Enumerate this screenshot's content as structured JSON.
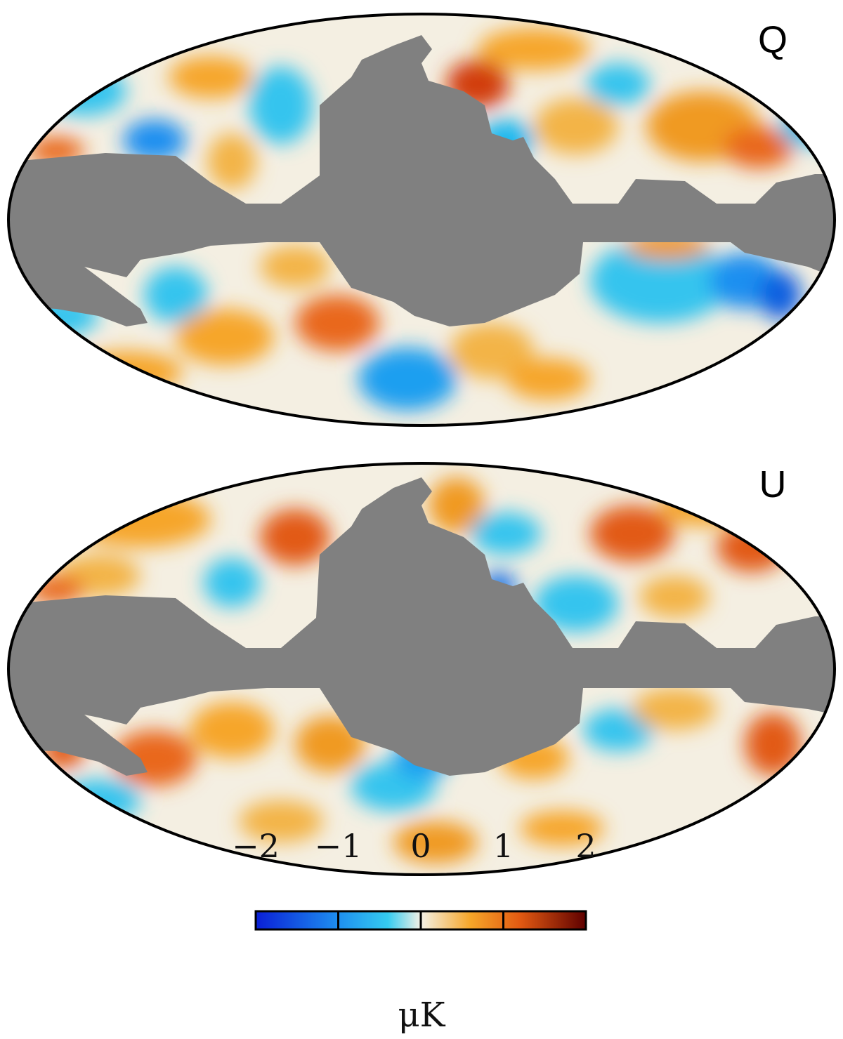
{
  "maps": [
    {
      "stokes": "Q",
      "mask_color": "#808080"
    },
    {
      "stokes": "U",
      "mask_color": "#808080"
    }
  ],
  "colorbar": {
    "min": -2,
    "max": 2,
    "ticks": [
      "−2",
      "−1",
      "0",
      "1",
      "2"
    ],
    "tick_values": [
      -2,
      -1,
      0,
      1,
      2
    ],
    "unit": "μK",
    "colors": [
      "#0a1fd6",
      "#1e8ff0",
      "#35cbf0",
      "#f4f1e6",
      "#f6a629",
      "#e25a12",
      "#5e0000"
    ]
  }
}
